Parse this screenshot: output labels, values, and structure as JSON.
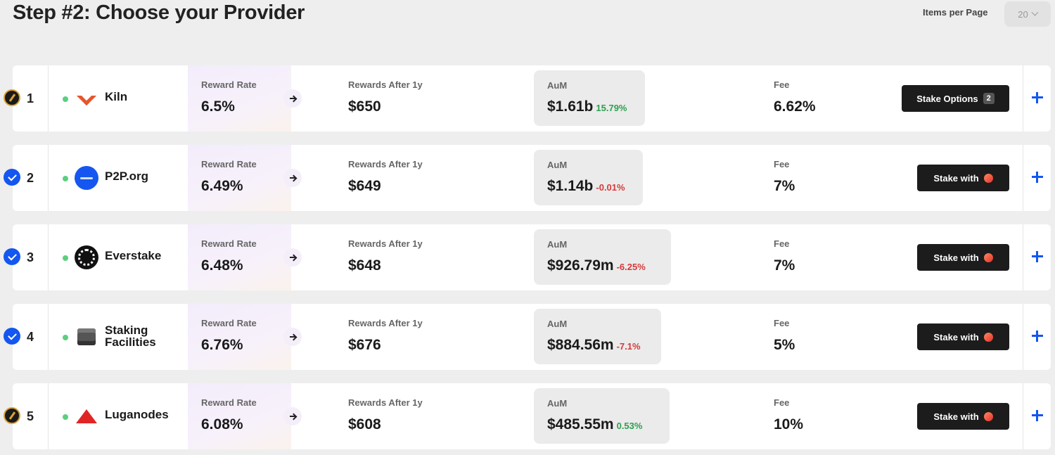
{
  "page": {
    "title": "Step #2: Choose your Provider",
    "items_per_page_label": "Items per Page",
    "items_per_page_value": "20"
  },
  "labels": {
    "reward_rate": "Reward Rate",
    "rewards_after": "Rewards After 1y",
    "aum": "AuM",
    "fee": "Fee"
  },
  "providers": [
    {
      "rank": "1",
      "badge": "dark-bolt",
      "name": "Kiln",
      "logo": "kiln-logo",
      "reward_rate": "6.5%",
      "rewards_after": "$650",
      "aum": "$1.61b",
      "aum_change": "15.79%",
      "aum_trend": "pos",
      "fee": "6.62%",
      "action_label": "Stake Options",
      "action_count": "2"
    },
    {
      "rank": "2",
      "badge": "check",
      "name": "P2P.org",
      "logo": "p2p-logo",
      "reward_rate": "6.49%",
      "rewards_after": "$649",
      "aum": "$1.14b",
      "aum_change": "-0.01%",
      "aum_trend": "neg",
      "fee": "7%",
      "action_label": "Stake with"
    },
    {
      "rank": "3",
      "badge": "check",
      "name": "Everstake",
      "logo": "everstake-logo",
      "reward_rate": "6.48%",
      "rewards_after": "$648",
      "aum": "$926.79m",
      "aum_change": "-6.25%",
      "aum_trend": "neg",
      "fee": "7%",
      "action_label": "Stake with"
    },
    {
      "rank": "4",
      "badge": "check",
      "name": "Staking Facilities",
      "logo": "staking-facilities-logo",
      "reward_rate": "6.76%",
      "rewards_after": "$676",
      "aum": "$884.56m",
      "aum_change": "-7.1%",
      "aum_trend": "neg",
      "fee": "5%",
      "action_label": "Stake with"
    },
    {
      "rank": "5",
      "badge": "dark-bolt",
      "name": "Luganodes",
      "logo": "luganodes-logo",
      "reward_rate": "6.08%",
      "rewards_after": "$608",
      "aum": "$485.55m",
      "aum_change": "0.53%",
      "aum_trend": "pos",
      "fee": "10%",
      "action_label": "Stake with"
    }
  ],
  "colors": {
    "accent": "#1456f0",
    "positive": "#2e9e4f",
    "negative": "#d63a3a",
    "button_bg": "#1c1c1c"
  }
}
